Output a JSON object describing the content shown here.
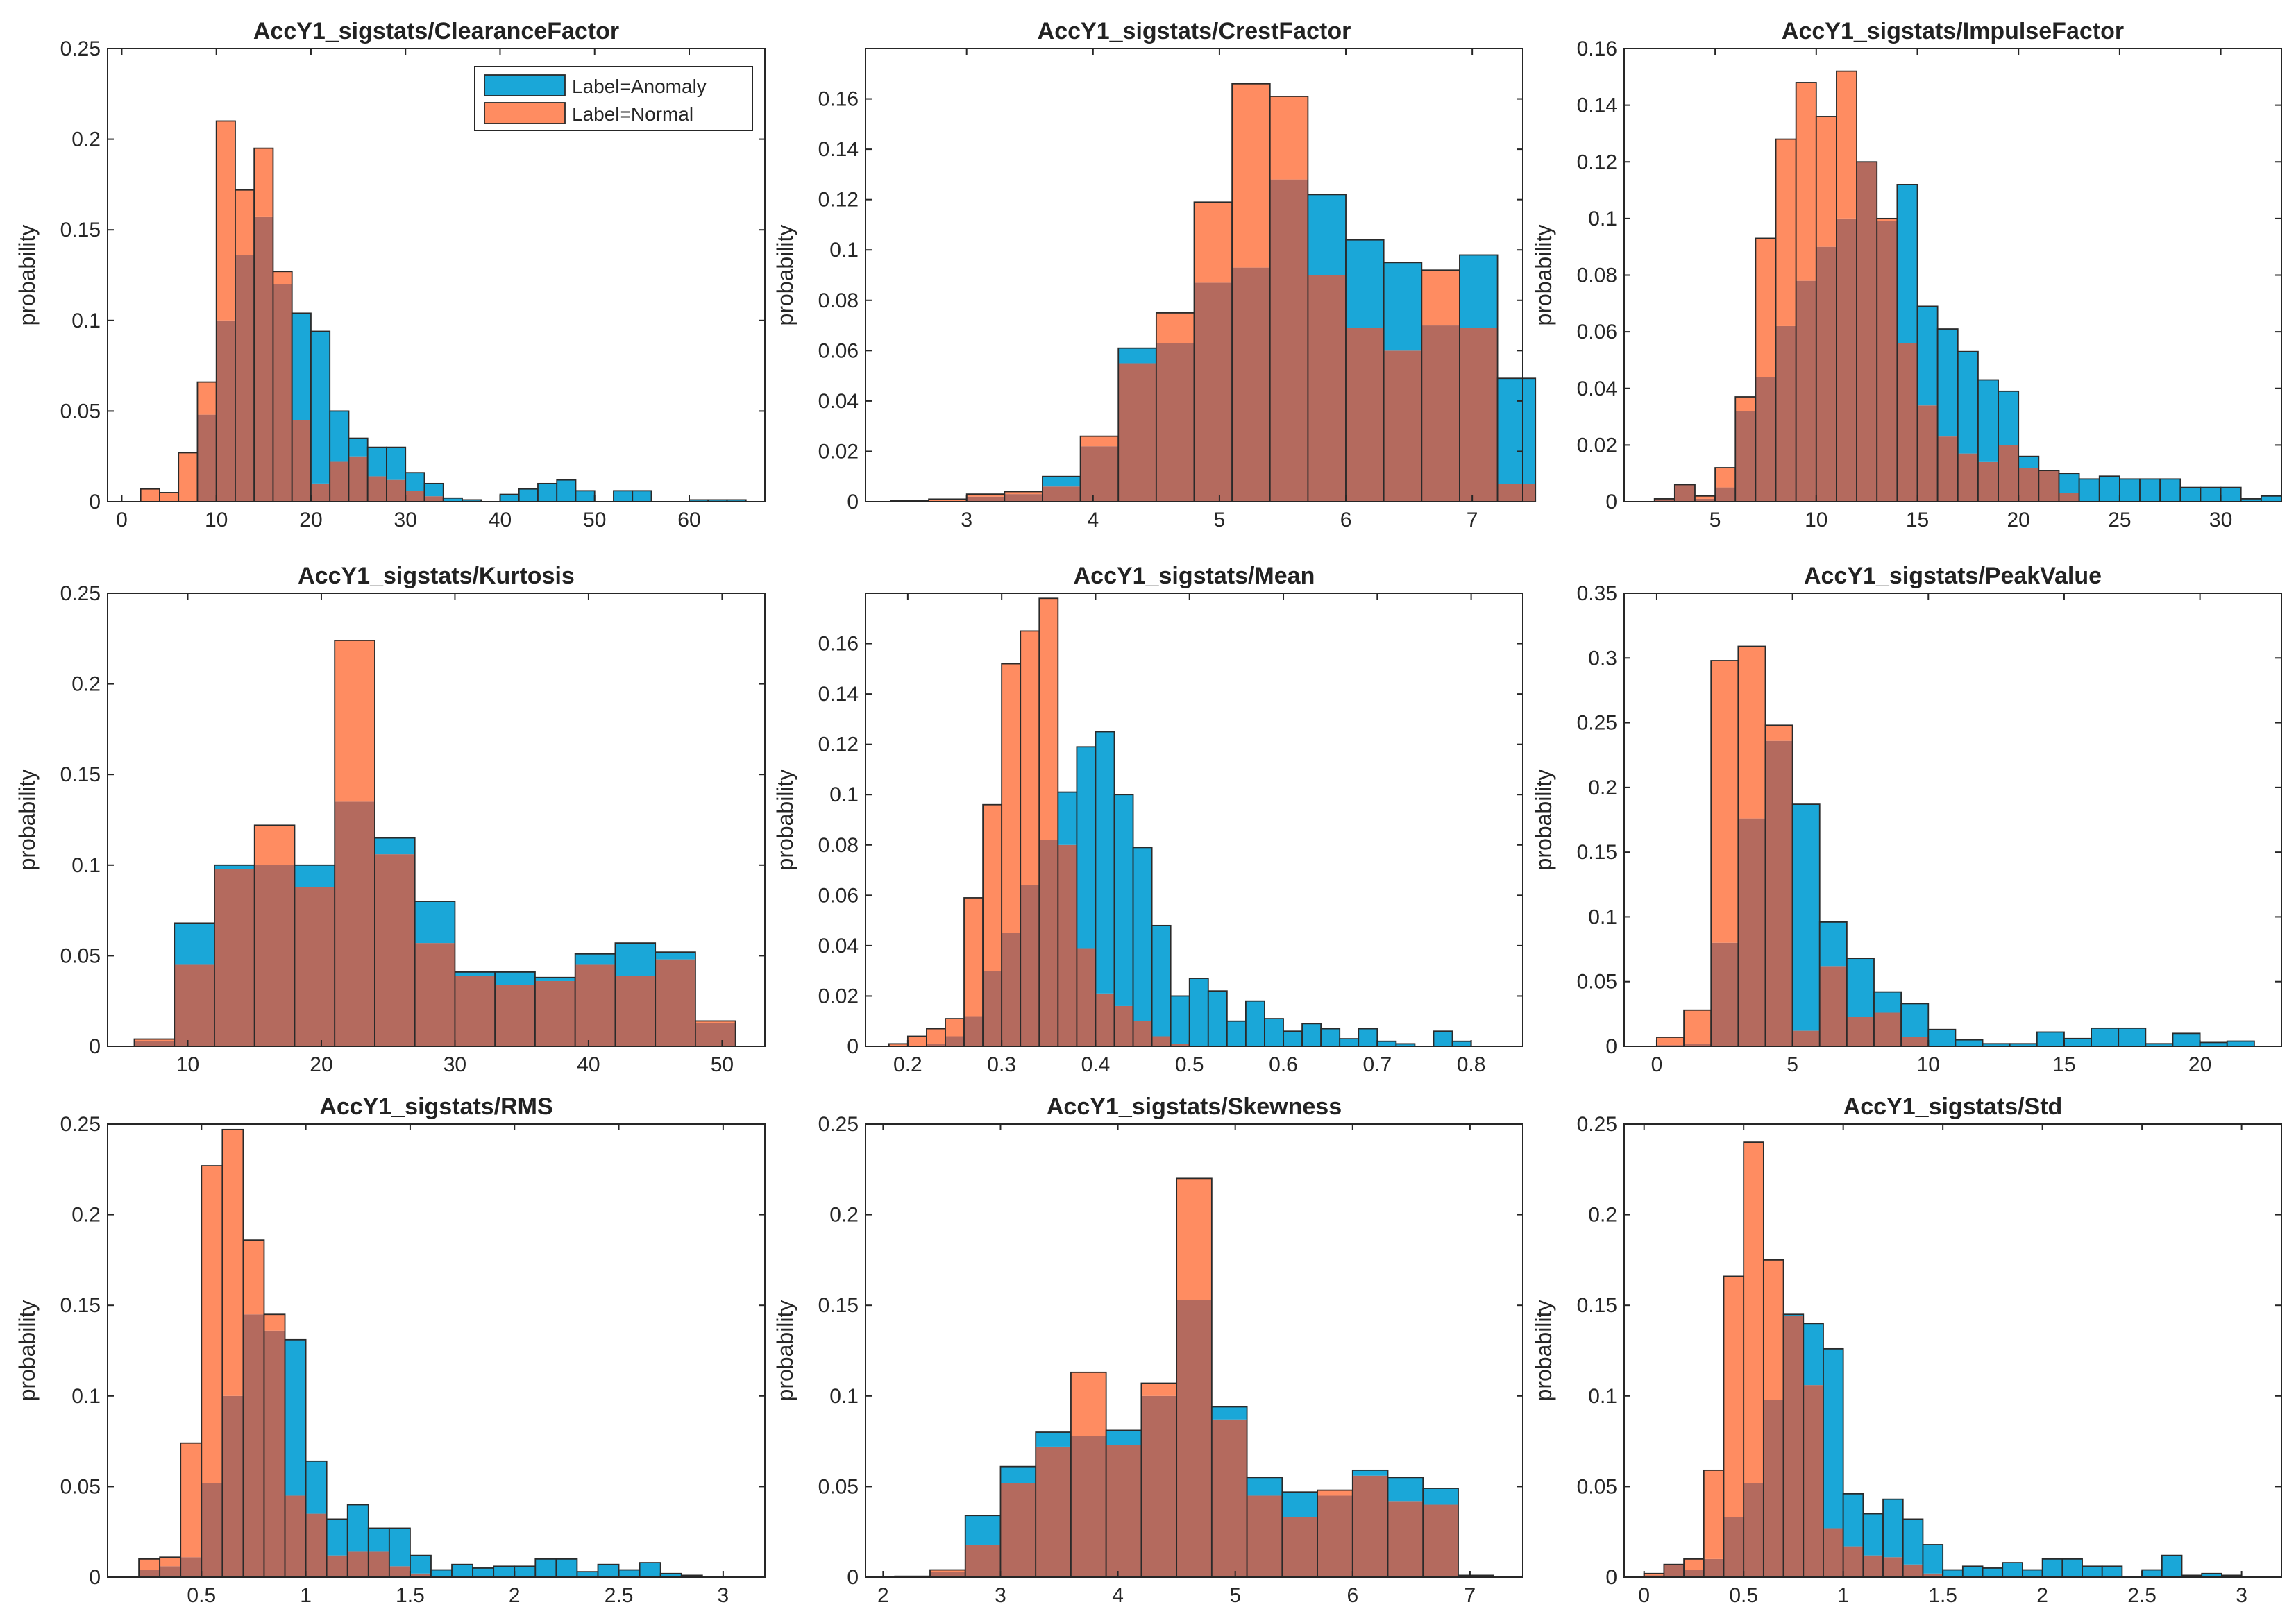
{
  "colors": {
    "anomaly": "#1aa7d8",
    "normal": "#ff8c61",
    "overlap": "#b46a5e",
    "edge": "#2a2a2a"
  },
  "legend": {
    "anomaly_label": "Label=Anomaly",
    "normal_label": "Label=Normal"
  },
  "chart_data": [
    {
      "type": "bar",
      "title": "AccY1_sigstats/ClearanceFactor",
      "ylabel": "probability",
      "xlim": [
        -1.5,
        68
      ],
      "ylim": [
        0,
        0.25
      ],
      "xticks": [
        0,
        10,
        20,
        30,
        40,
        50,
        60
      ],
      "yticks": [
        0,
        0.05,
        0.1,
        0.15,
        0.2,
        0.25
      ],
      "ytick_labels": [
        "0",
        "0.05",
        "0.1",
        "0.15",
        "0.2",
        "0.25"
      ],
      "legend": true,
      "bin_start": 2,
      "bin_width": 2,
      "series": [
        {
          "name": "Label=Anomaly",
          "values": [
            0,
            0,
            0.0,
            0.048,
            0.1,
            0.136,
            0.157,
            0.12,
            0.104,
            0.094,
            0.05,
            0.035,
            0.03,
            0.03,
            0.016,
            0.01,
            0.002,
            0.001,
            0,
            0.004,
            0.007,
            0.01,
            0.012,
            0.006,
            0,
            0.006,
            0.006,
            0,
            0,
            0.001,
            0.001,
            0.001
          ]
        },
        {
          "name": "Label=Normal",
          "values": [
            0.007,
            0.005,
            0.027,
            0.066,
            0.21,
            0.172,
            0.195,
            0.127,
            0.045,
            0.01,
            0.022,
            0.025,
            0.014,
            0.012,
            0.006,
            0.003,
            0,
            0,
            0,
            0,
            0,
            0,
            0,
            0,
            0,
            0,
            0,
            0,
            0,
            0,
            0,
            0
          ]
        }
      ]
    },
    {
      "type": "bar",
      "title": "AccY1_sigstats/CrestFactor",
      "ylabel": "probability",
      "xlim": [
        2.2,
        7.4
      ],
      "ylim": [
        0,
        0.18
      ],
      "xticks": [
        3,
        4,
        5,
        6,
        7
      ],
      "yticks": [
        0,
        0.02,
        0.04,
        0.06,
        0.08,
        0.1,
        0.12,
        0.14,
        0.16
      ],
      "ytick_labels": [
        "0",
        "0.02",
        "0.04",
        "0.06",
        "0.08",
        "0.1",
        "0.12",
        "0.14",
        "0.16"
      ],
      "legend": false,
      "bin_start": 2.4,
      "bin_width": 0.3,
      "series": [
        {
          "name": "Label=Anomaly",
          "values": [
            0,
            0,
            0.002,
            0.003,
            0.01,
            0.022,
            0.061,
            0.063,
            0.087,
            0.093,
            0.128,
            0.122,
            0.104,
            0.095,
            0.07,
            0.098,
            0.049
          ]
        },
        {
          "name": "Label=Normal",
          "values": [
            0.0005,
            0.001,
            0.003,
            0.004,
            0.006,
            0.026,
            0.055,
            0.075,
            0.119,
            0.166,
            0.161,
            0.09,
            0.069,
            0.06,
            0.092,
            0.069,
            0.007
          ]
        }
      ]
    },
    {
      "type": "bar",
      "title": "AccY1_sigstats/ImpulseFactor",
      "ylabel": "probability",
      "xlim": [
        0.5,
        33
      ],
      "ylim": [
        0,
        0.16
      ],
      "xticks": [
        5,
        10,
        15,
        20,
        25,
        30
      ],
      "yticks": [
        0,
        0.02,
        0.04,
        0.06,
        0.08,
        0.1,
        0.12,
        0.14,
        0.16
      ],
      "ytick_labels": [
        "0",
        "0.02",
        "0.04",
        "0.06",
        "0.08",
        "0.1",
        "0.12",
        "0.14",
        "0.16"
      ],
      "legend": false,
      "bin_start": 2,
      "bin_width": 1,
      "series": [
        {
          "name": "Label=Anomaly",
          "values": [
            0.001,
            0.006,
            0.001,
            0.005,
            0.032,
            0.044,
            0.062,
            0.078,
            0.09,
            0.1,
            0.12,
            0.099,
            0.112,
            0.069,
            0.061,
            0.053,
            0.043,
            0.039,
            0.016,
            0.011,
            0.01,
            0.008,
            0.009,
            0.008,
            0.008,
            0.008,
            0.005,
            0.005,
            0.005,
            0.001,
            0.002
          ]
        },
        {
          "name": "Label=Normal",
          "values": [
            0.001,
            0.006,
            0.002,
            0.012,
            0.037,
            0.093,
            0.128,
            0.148,
            0.136,
            0.152,
            0.12,
            0.1,
            0.056,
            0.034,
            0.023,
            0.017,
            0.014,
            0.02,
            0.012,
            0.011,
            0.003,
            0,
            0,
            0,
            0,
            0,
            0,
            0,
            0,
            0,
            0
          ]
        }
      ]
    },
    {
      "type": "bar",
      "title": "AccY1_sigstats/Kurtosis",
      "ylabel": "probability",
      "xlim": [
        4,
        53.2
      ],
      "ylim": [
        0,
        0.25
      ],
      "xticks": [
        10,
        20,
        30,
        40,
        50
      ],
      "yticks": [
        0,
        0.05,
        0.1,
        0.15,
        0.2,
        0.25
      ],
      "ytick_labels": [
        "0",
        "0.05",
        "0.1",
        "0.15",
        "0.2",
        "0.25"
      ],
      "legend": false,
      "bin_start": 6,
      "bin_width": 3,
      "series": [
        {
          "name": "Label=Anomaly",
          "values": [
            0.003,
            0.068,
            0.1,
            0.1,
            0.1,
            0.135,
            0.115,
            0.08,
            0.041,
            0.041,
            0.038,
            0.051,
            0.057,
            0.052,
            0.013
          ]
        },
        {
          "name": "Label=Normal",
          "values": [
            0.004,
            0.045,
            0.098,
            0.122,
            0.088,
            0.224,
            0.106,
            0.057,
            0.039,
            0.034,
            0.036,
            0.045,
            0.039,
            0.048,
            0.014
          ]
        }
      ]
    },
    {
      "type": "bar",
      "title": "AccY1_sigstats/Mean",
      "ylabel": "probability",
      "xlim": [
        0.155,
        0.855
      ],
      "ylim": [
        0,
        0.18
      ],
      "xticks": [
        0.2,
        0.3,
        0.4,
        0.5,
        0.6,
        0.7,
        0.8
      ],
      "xtick_labels": [
        "0.2",
        "0.3",
        "0.4",
        "0.5",
        "0.6",
        "0.7",
        "0.8"
      ],
      "yticks": [
        0,
        0.02,
        0.04,
        0.06,
        0.08,
        0.1,
        0.12,
        0.14,
        0.16
      ],
      "ytick_labels": [
        "0",
        "0.02",
        "0.04",
        "0.06",
        "0.08",
        "0.1",
        "0.12",
        "0.14",
        "0.16"
      ],
      "legend": false,
      "bin_start": 0.18,
      "bin_width": 0.02,
      "series": [
        {
          "name": "Label=Anomaly",
          "values": [
            0,
            0,
            0.001,
            0.004,
            0.012,
            0.03,
            0.045,
            0.064,
            0.082,
            0.101,
            0.119,
            0.125,
            0.1,
            0.079,
            0.048,
            0.02,
            0.027,
            0.022,
            0.01,
            0.018,
            0.011,
            0.006,
            0.009,
            0.007,
            0.003,
            0.007,
            0.002,
            0.001,
            0,
            0.006,
            0.002
          ]
        },
        {
          "name": "Label=Normal",
          "values": [
            0.001,
            0.004,
            0.007,
            0.011,
            0.059,
            0.096,
            0.152,
            0.165,
            0.178,
            0.08,
            0.039,
            0.021,
            0.016,
            0.01,
            0.004,
            0.001,
            0,
            0,
            0,
            0,
            0,
            0,
            0,
            0,
            0,
            0,
            0,
            0,
            0,
            0,
            0
          ]
        }
      ]
    },
    {
      "type": "bar",
      "title": "AccY1_sigstats/PeakValue",
      "ylabel": "probability",
      "xlim": [
        -1.2,
        23
      ],
      "ylim": [
        0,
        0.35
      ],
      "xticks": [
        0,
        5,
        10,
        15,
        20
      ],
      "yticks": [
        0,
        0.05,
        0.1,
        0.15,
        0.2,
        0.25,
        0.3,
        0.35
      ],
      "ytick_labels": [
        "0",
        "0.05",
        "0.1",
        "0.15",
        "0.2",
        "0.25",
        "0.3",
        "0.35"
      ],
      "legend": false,
      "bin_start": 0,
      "bin_width": 1,
      "series": [
        {
          "name": "Label=Anomaly",
          "values": [
            0.001,
            0.002,
            0.08,
            0.176,
            0.236,
            0.187,
            0.096,
            0.068,
            0.042,
            0.033,
            0.013,
            0.005,
            0.002,
            0.002,
            0.011,
            0.006,
            0.014,
            0.014,
            0.002,
            0.01,
            0.003,
            0.004
          ]
        },
        {
          "name": "Label=Normal",
          "values": [
            0.007,
            0.028,
            0.298,
            0.309,
            0.248,
            0.012,
            0.062,
            0.023,
            0.026,
            0.007,
            0,
            0,
            0,
            0,
            0,
            0,
            0,
            0,
            0,
            0,
            0,
            0
          ]
        }
      ]
    },
    {
      "type": "bar",
      "title": "AccY1_sigstats/RMS",
      "ylabel": "probability",
      "xlim": [
        0.05,
        3.2
      ],
      "ylim": [
        0,
        0.25
      ],
      "xticks": [
        0.5,
        1,
        1.5,
        2,
        2.5,
        3
      ],
      "xtick_labels": [
        "0.5",
        "1",
        "1.5",
        "2",
        "2.5",
        "3"
      ],
      "yticks": [
        0,
        0.05,
        0.1,
        0.15,
        0.2,
        0.25
      ],
      "ytick_labels": [
        "0",
        "0.05",
        "0.1",
        "0.15",
        "0.2",
        "0.25"
      ],
      "legend": false,
      "bin_start": 0.2,
      "bin_width": 0.1,
      "series": [
        {
          "name": "Label=Anomaly",
          "values": [
            0.004,
            0.006,
            0.011,
            0.052,
            0.1,
            0.145,
            0.136,
            0.131,
            0.064,
            0.032,
            0.04,
            0.027,
            0.027,
            0.012,
            0.004,
            0.007,
            0.005,
            0.006,
            0.006,
            0.01,
            0.01,
            0.003,
            0.007,
            0.004,
            0.008,
            0.002,
            0.001
          ]
        },
        {
          "name": "Label=Normal",
          "values": [
            0.01,
            0.011,
            0.074,
            0.227,
            0.247,
            0.186,
            0.145,
            0.045,
            0.035,
            0.012,
            0.014,
            0.014,
            0.006,
            0.002,
            0,
            0,
            0,
            0,
            0,
            0,
            0,
            0,
            0,
            0,
            0,
            0,
            0
          ]
        }
      ]
    },
    {
      "type": "bar",
      "title": "AccY1_sigstats/Skewness",
      "ylabel": "probability",
      "xlim": [
        1.85,
        7.45
      ],
      "ylim": [
        0,
        0.25
      ],
      "xticks": [
        2,
        3,
        4,
        5,
        6,
        7
      ],
      "yticks": [
        0,
        0.05,
        0.1,
        0.15,
        0.2,
        0.25
      ],
      "ytick_labels": [
        "0",
        "0.05",
        "0.1",
        "0.15",
        "0.2",
        "0.25"
      ],
      "legend": false,
      "bin_start": 2.1,
      "bin_width": 0.3,
      "series": [
        {
          "name": "Label=Anomaly",
          "values": [
            0.0005,
            0.003,
            0.034,
            0.061,
            0.08,
            0.078,
            0.081,
            0.1,
            0.153,
            0.094,
            0.055,
            0.047,
            0.045,
            0.059,
            0.055,
            0.049,
            0.001
          ]
        },
        {
          "name": "Label=Normal",
          "values": [
            0.0005,
            0.004,
            0.018,
            0.052,
            0.072,
            0.113,
            0.073,
            0.107,
            0.22,
            0.087,
            0.045,
            0.033,
            0.048,
            0.056,
            0.042,
            0.04,
            0.001
          ]
        }
      ]
    },
    {
      "type": "bar",
      "title": "AccY1_sigstats/Std",
      "ylabel": "probability",
      "xlim": [
        -0.1,
        3.2
      ],
      "ylim": [
        0,
        0.25
      ],
      "xticks": [
        0,
        0.5,
        1,
        1.5,
        2,
        2.5,
        3
      ],
      "xtick_labels": [
        "0",
        "0.5",
        "1",
        "1.5",
        "2",
        "2.5",
        "3"
      ],
      "yticks": [
        0,
        0.05,
        0.1,
        0.15,
        0.2,
        0.25
      ],
      "ytick_labels": [
        "0",
        "0.05",
        "0.1",
        "0.15",
        "0.2",
        "0.25"
      ],
      "legend": false,
      "bin_start": 0,
      "bin_width": 0.1,
      "series": [
        {
          "name": "Label=Anomaly",
          "values": [
            0.001,
            0.007,
            0.004,
            0.01,
            0.033,
            0.052,
            0.098,
            0.145,
            0.14,
            0.126,
            0.046,
            0.035,
            0.043,
            0.032,
            0.018,
            0.004,
            0.006,
            0.005,
            0.008,
            0.004,
            0.01,
            0.01,
            0.006,
            0.006,
            0,
            0.004,
            0.012,
            0.001,
            0.002,
            0.001
          ]
        },
        {
          "name": "Label=Normal",
          "values": [
            0.002,
            0.007,
            0.01,
            0.059,
            0.166,
            0.24,
            0.175,
            0.144,
            0.106,
            0.027,
            0.017,
            0.012,
            0.011,
            0.007,
            0.002,
            0,
            0,
            0,
            0,
            0,
            0,
            0,
            0,
            0,
            0,
            0,
            0,
            0,
            0,
            0
          ]
        }
      ]
    }
  ]
}
